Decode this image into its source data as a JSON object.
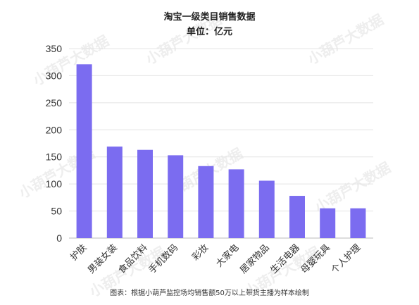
{
  "chart_data": {
    "type": "bar",
    "title": "淘宝一级类目销售数据",
    "subtitle": "单位：亿元",
    "categories": [
      "护肤",
      "男装女装",
      "食品饮料",
      "手机数码",
      "彩妆",
      "大家电",
      "居家物品",
      "生活电器",
      "母婴玩具",
      "个人护理"
    ],
    "values": [
      321,
      169,
      163,
      153,
      133,
      127,
      106,
      78,
      55,
      55
    ],
    "ylim": [
      0,
      350
    ],
    "yticks": [
      0,
      50,
      100,
      150,
      200,
      250,
      300,
      350
    ],
    "grid": true,
    "bar_color": "#7b6cf0",
    "footnote": "图表：根据小葫芦监控场均销售额50万以上带货主播为样本绘制",
    "watermark": "小葫芦大数据"
  }
}
